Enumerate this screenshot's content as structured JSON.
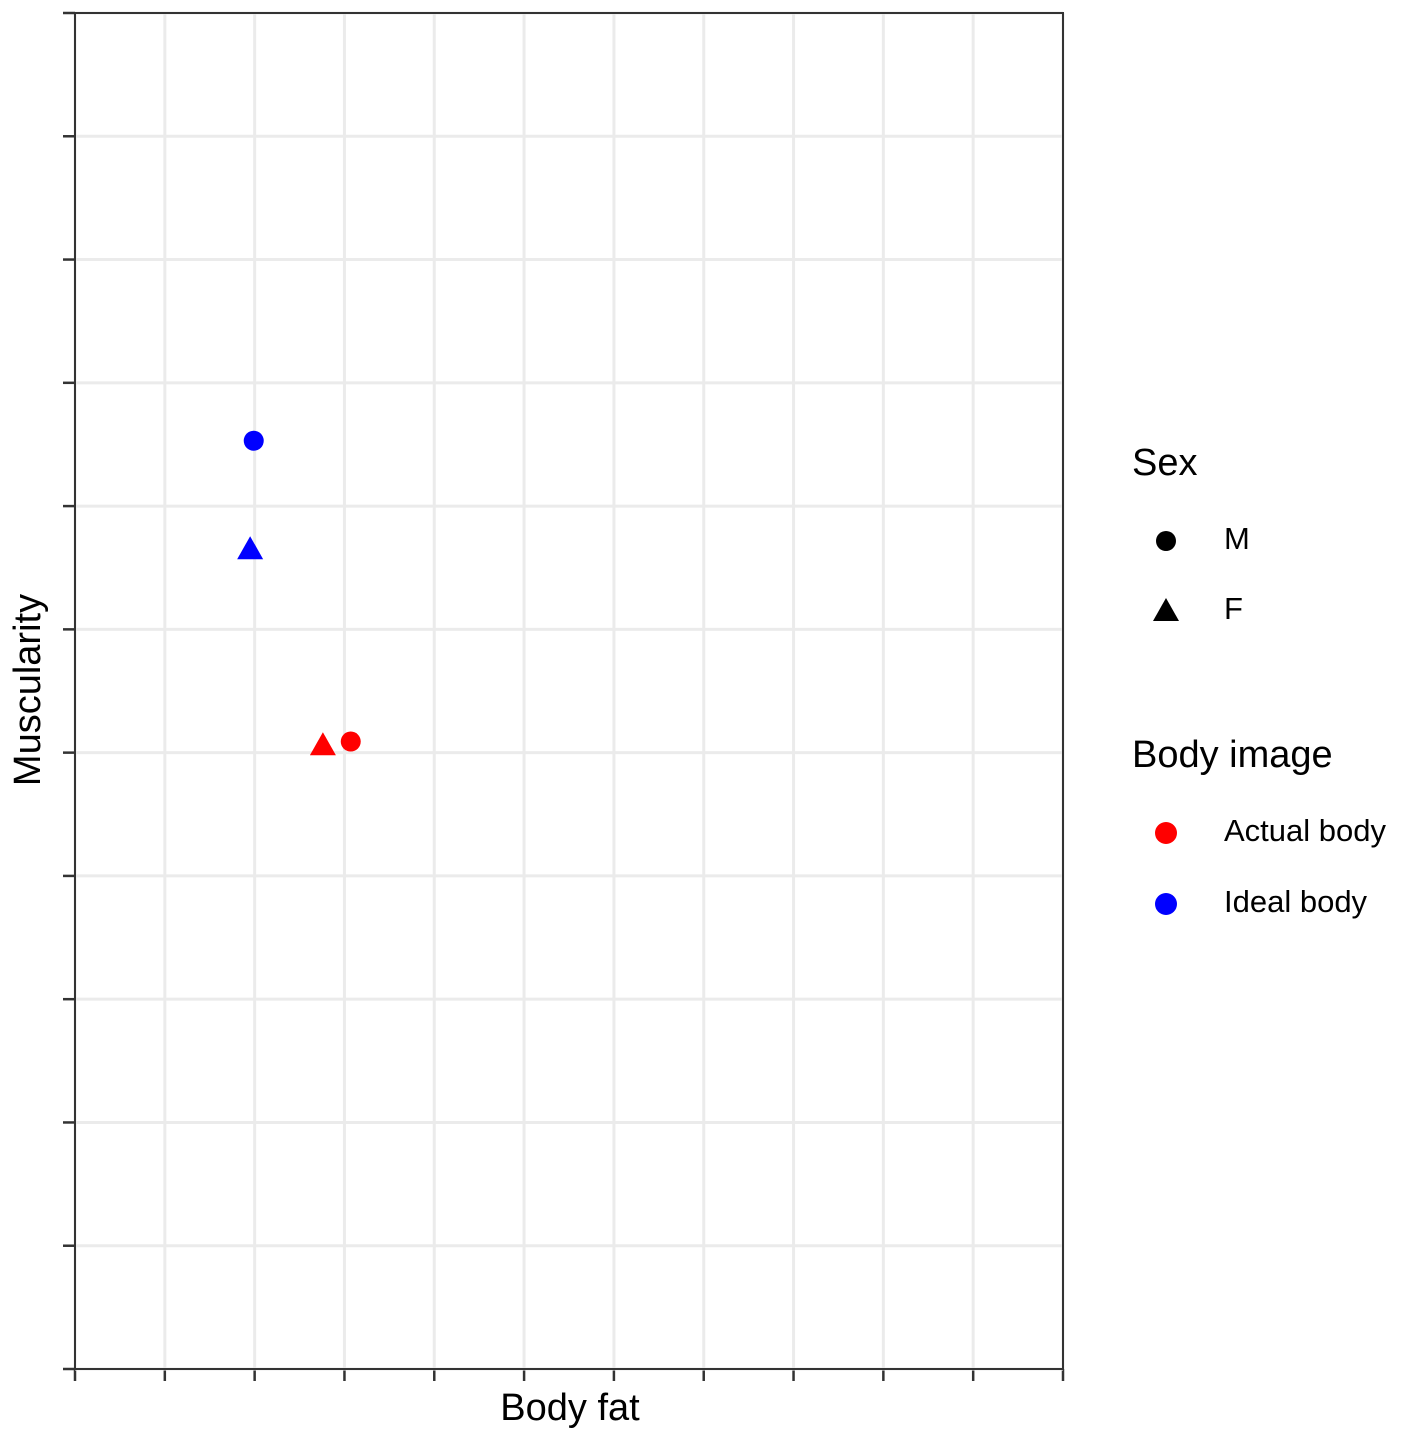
{
  "chart_data": {
    "type": "scatter",
    "x_label": "Body fat",
    "y_label": "Muscularity",
    "xlim": [
      1,
      12
    ],
    "xticks": [
      1,
      2,
      3,
      4,
      5,
      6,
      7,
      8,
      9,
      10,
      11,
      12
    ],
    "ylim": [
      1,
      12
    ],
    "yticks": [
      1,
      2,
      3,
      4,
      5,
      6,
      7,
      8,
      9,
      10,
      11,
      12
    ],
    "tick_labels": false,
    "grid": true,
    "legend": "right",
    "legend_title": "Body image",
    "series": [
      {
        "name": "Actual body",
        "color": "#ff0000",
        "x": [
          4.07,
          3.76
        ],
        "values": [
          6.09,
          6.06
        ],
        "shapes": [
          "circle",
          "triangle"
        ]
      },
      {
        "name": "Ideal body",
        "color": "#0000ff",
        "x": [
          2.99,
          2.95
        ],
        "values": [
          8.53,
          7.65
        ],
        "shapes": [
          "circle",
          "triangle"
        ]
      }
    ],
    "shape_legend": {
      "title": "Sex",
      "labels": [
        "M",
        "F"
      ],
      "shapes": [
        "circle",
        "triangle"
      ],
      "color": "#000000"
    }
  }
}
